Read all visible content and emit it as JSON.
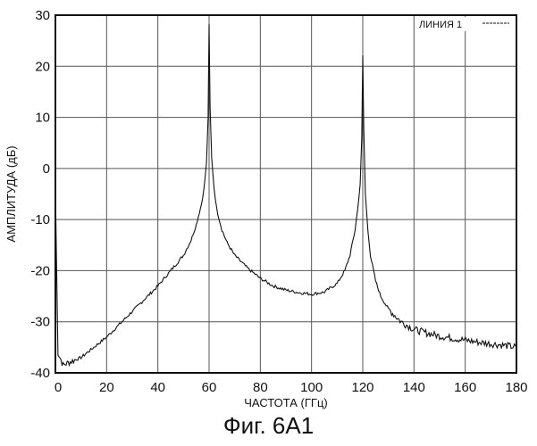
{
  "chart_data": {
    "type": "line",
    "xlabel": "ЧАСТОТА (ГГц)",
    "ylabel": "АМПЛИТУДА (дБ)",
    "xlim": [
      0,
      180
    ],
    "ylim": [
      -40,
      30
    ],
    "x_ticks": [
      0,
      20,
      40,
      60,
      80,
      100,
      120,
      140,
      160,
      180
    ],
    "y_ticks": [
      30,
      20,
      10,
      0,
      -10,
      -20,
      -30,
      -40
    ],
    "grid": true,
    "legend_position": "top-right",
    "series": [
      {
        "name": "ЛИНИЯ 1",
        "color": "#111111",
        "x": [
          0,
          1,
          3,
          5,
          10,
          15,
          20,
          25,
          30,
          35,
          40,
          45,
          50,
          53,
          55,
          57,
          58,
          59,
          59.6,
          60,
          60.4,
          61,
          62,
          63,
          65,
          67,
          70,
          75,
          80,
          85,
          90,
          95,
          100,
          105,
          110,
          113,
          115,
          117,
          118,
          119,
          119.6,
          120,
          120.4,
          121,
          122,
          123,
          125,
          127,
          130,
          135,
          140,
          145,
          150,
          155,
          160,
          165,
          170,
          175,
          180
        ],
        "y": [
          -4,
          -36,
          -38.5,
          -38,
          -37,
          -35,
          -33,
          -30.5,
          -28,
          -25.5,
          -23,
          -20,
          -17,
          -14,
          -11,
          -7,
          -4,
          1,
          10,
          28,
          12,
          2,
          -4,
          -8,
          -12,
          -14.5,
          -17,
          -19.5,
          -21.5,
          -23,
          -23.8,
          -24.3,
          -24.6,
          -24.2,
          -22.5,
          -20,
          -17,
          -12,
          -8,
          -3,
          6,
          22,
          8,
          -5,
          -12,
          -17,
          -22,
          -25,
          -27.5,
          -30,
          -31.5,
          -32.2,
          -32.8,
          -33.2,
          -33.6,
          -34,
          -34.3,
          -34.6,
          -35
        ]
      }
    ],
    "caption": "Фиг. 6А1"
  }
}
